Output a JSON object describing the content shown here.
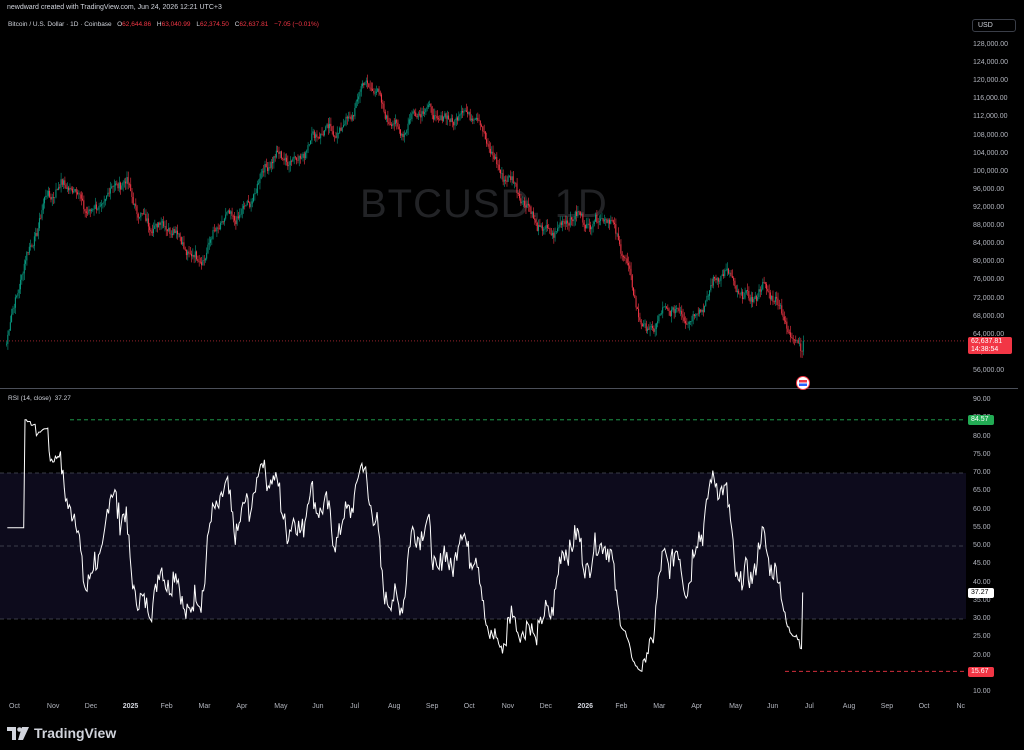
{
  "header": {
    "credit": "newdward created with TradingView.com, Jun 24, 2026 12:21 UTC+3",
    "currency": "USD"
  },
  "legend": {
    "symbol": "Bitcoin / U.S. Dollar · 1D · Coinbase",
    "open_label": "O",
    "open": "62,644.86",
    "high_label": "H",
    "high": "63,040.99",
    "low_label": "L",
    "low": "62,374.50",
    "close_label": "C",
    "close": "62,637.81",
    "change": "−7.05 (−0.01%)"
  },
  "watermark": "BTCUSD, 1D",
  "rsi": {
    "label": "RSI (14, close)",
    "value": "37.27",
    "high_value": "84.57",
    "low_value": "15.67"
  },
  "price_badge": {
    "price": "62,637.81",
    "countdown": "14:38:54"
  },
  "price_axis": [
    "128,000.00",
    "124,000.00",
    "120,000.00",
    "116,000.00",
    "112,000.00",
    "108,000.00",
    "104,000.00",
    "100,000.00",
    "96,000.00",
    "92,000.00",
    "88,000.00",
    "84,000.00",
    "80,000.00",
    "76,000.00",
    "72,000.00",
    "68,000.00",
    "64,000.00",
    "60,000.00",
    "56,000.00"
  ],
  "rsi_axis": [
    "90.00",
    "85.00",
    "80.00",
    "75.00",
    "70.00",
    "65.00",
    "60.00",
    "55.00",
    "50.00",
    "45.00",
    "40.00",
    "35.00",
    "30.00",
    "25.00",
    "20.00",
    "15.00",
    "10.00"
  ],
  "time_axis": [
    {
      "label": "Oct",
      "bold": false
    },
    {
      "label": "Nov",
      "bold": false
    },
    {
      "label": "Dec",
      "bold": false
    },
    {
      "label": "2025",
      "bold": true
    },
    {
      "label": "Feb",
      "bold": false
    },
    {
      "label": "Mar",
      "bold": false
    },
    {
      "label": "Apr",
      "bold": false
    },
    {
      "label": "May",
      "bold": false
    },
    {
      "label": "Jun",
      "bold": false
    },
    {
      "label": "Jul",
      "bold": false
    },
    {
      "label": "Aug",
      "bold": false
    },
    {
      "label": "Sep",
      "bold": false
    },
    {
      "label": "Oct",
      "bold": false
    },
    {
      "label": "Nov",
      "bold": false
    },
    {
      "label": "Dec",
      "bold": false
    },
    {
      "label": "2026",
      "bold": true
    },
    {
      "label": "Feb",
      "bold": false
    },
    {
      "label": "Mar",
      "bold": false
    },
    {
      "label": "Apr",
      "bold": false
    },
    {
      "label": "May",
      "bold": false
    },
    {
      "label": "Jun",
      "bold": false
    },
    {
      "label": "Jul",
      "bold": false
    },
    {
      "label": "Aug",
      "bold": false
    },
    {
      "label": "Sep",
      "bold": false
    },
    {
      "label": "Oct",
      "bold": false
    },
    {
      "label": "Nc",
      "bold": false
    }
  ],
  "footer": {
    "brand": "TradingView"
  },
  "colors": {
    "up": "#089981",
    "down": "#f23645",
    "rsi_line": "#ffffff",
    "band_fill": "#0d0b1c",
    "overbought_fill": "#1f5f2a",
    "oversold_fill": "#7a1a1a"
  },
  "chart_data": {
    "type": "candlestick",
    "symbol": "BTCUSD",
    "interval": "1D",
    "price_ylim": [
      56000,
      128000
    ],
    "monthly_close_path": [
      {
        "x": "Oct",
        "y": 62000
      },
      {
        "x": "Nov",
        "y": 97000
      },
      {
        "x": "Dec",
        "y": 93000
      },
      {
        "x": "2025",
        "y": 96000
      },
      {
        "x": "Feb",
        "y": 86000
      },
      {
        "x": "Mar",
        "y": 82000
      },
      {
        "x": "Apr",
        "y": 94000
      },
      {
        "x": "May",
        "y": 104000
      },
      {
        "x": "Jun",
        "y": 107000
      },
      {
        "x": "Jul",
        "y": 118000
      },
      {
        "x": "Aug",
        "y": 110000
      },
      {
        "x": "Sep",
        "y": 114000
      },
      {
        "x": "Oct",
        "y": 109000
      },
      {
        "x": "Nov",
        "y": 91000
      },
      {
        "x": "Dec",
        "y": 87000
      },
      {
        "x": "2026",
        "y": 92000
      },
      {
        "x": "Feb",
        "y": 67000
      },
      {
        "x": "Mar",
        "y": 68000
      },
      {
        "x": "Apr",
        "y": 76000
      },
      {
        "x": "May",
        "y": 73000
      },
      {
        "x": "Jun",
        "y": 62637.81
      }
    ],
    "rsi": {
      "period": 14,
      "ylim": [
        10,
        90
      ],
      "levels": [
        70,
        50,
        30
      ],
      "last": 37.27,
      "max": 84.57,
      "min": 15.67
    }
  }
}
